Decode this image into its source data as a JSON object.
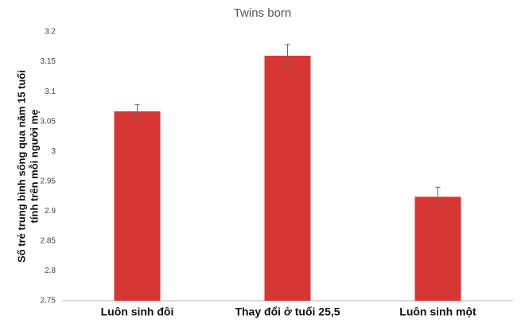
{
  "chart_data": {
    "type": "bar",
    "title": "Twins born",
    "ylabel": [
      "Số trẻ trung bình sống qua năm 15 tuổi",
      "tính trên mỗi người mẹ"
    ],
    "categories": [
      "Luôn sinh đôi",
      "Thay đổi ở tuổi 25,5",
      "Luôn sinh một"
    ],
    "values": [
      3.067,
      3.16,
      2.924
    ],
    "errors": [
      0.011,
      0.019,
      0.016
    ],
    "color": "#d73733",
    "ylim": [
      2.75,
      3.2
    ],
    "yticks": [
      2.75,
      2.8,
      2.85,
      2.9,
      2.95,
      3,
      3.05,
      3.1,
      3.15,
      3.2
    ],
    "grid": false
  }
}
